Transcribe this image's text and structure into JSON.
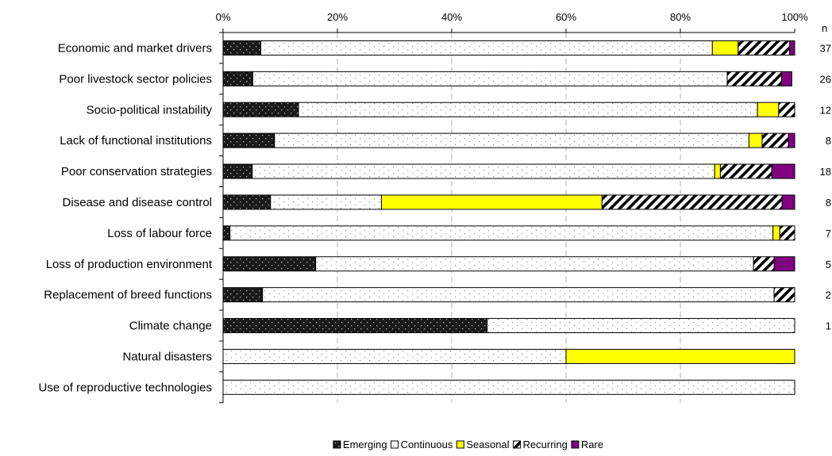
{
  "chart_data": {
    "type": "bar",
    "orientation": "horizontal",
    "stacked": true,
    "normalized": true,
    "categories": [
      "Economic and market drivers",
      "Poor livestock sector policies",
      "Socio-political instability",
      "Lack of functional institutions",
      "Poor conservation strategies",
      "Disease and disease control",
      "Loss of labour force",
      "Loss of production environment",
      "Replacement of breed functions",
      "Climate change",
      "Natural disasters",
      "Use of reproductive technologies"
    ],
    "series": [
      {
        "name": "Emerging",
        "fill": "#1a1a1a",
        "pattern": "dots-light",
        "values": [
          6.6,
          5.2,
          13.2,
          9.0,
          5.1,
          8.3,
          1.2,
          16.2,
          6.9,
          46.2,
          0,
          0
        ]
      },
      {
        "name": "Continuous",
        "fill": "#ffffff",
        "pattern": "dots-dark",
        "values": [
          79.0,
          83.0,
          80.3,
          83.0,
          80.9,
          19.4,
          95.0,
          76.6,
          89.5,
          53.8,
          60.0,
          100
        ]
      },
      {
        "name": "Seasonal",
        "fill": "#ffff00",
        "pattern": "none",
        "values": [
          4.5,
          0,
          3.7,
          2.3,
          1.0,
          38.6,
          1.2,
          0,
          0,
          0,
          40.0,
          0
        ]
      },
      {
        "name": "Recurring",
        "fill": "#ffffff",
        "pattern": "diagonal",
        "values": [
          9.0,
          9.5,
          2.8,
          4.6,
          9.0,
          31.5,
          2.6,
          3.6,
          3.6,
          0,
          0,
          0
        ]
      },
      {
        "name": "Rare",
        "fill": "#800080",
        "pattern": "none",
        "values": [
          0.9,
          1.8,
          0,
          1.1,
          4.0,
          2.2,
          0,
          3.6,
          0,
          0,
          0,
          0
        ]
      }
    ],
    "n_header": "n",
    "n_values": [
      "37",
      "26",
      "12",
      "8",
      "18",
      "8",
      "7",
      "5",
      "2",
      "1",
      "",
      ""
    ],
    "xlim": [
      0,
      100
    ],
    "x_ticks": [
      "0%",
      "20%",
      "40%",
      "60%",
      "80%",
      "100%"
    ],
    "x_tick_values": [
      0,
      20,
      40,
      60,
      80,
      100
    ],
    "x_axis_position": "top",
    "grid": "vertical-dashed",
    "legend_position": "bottom-center"
  }
}
